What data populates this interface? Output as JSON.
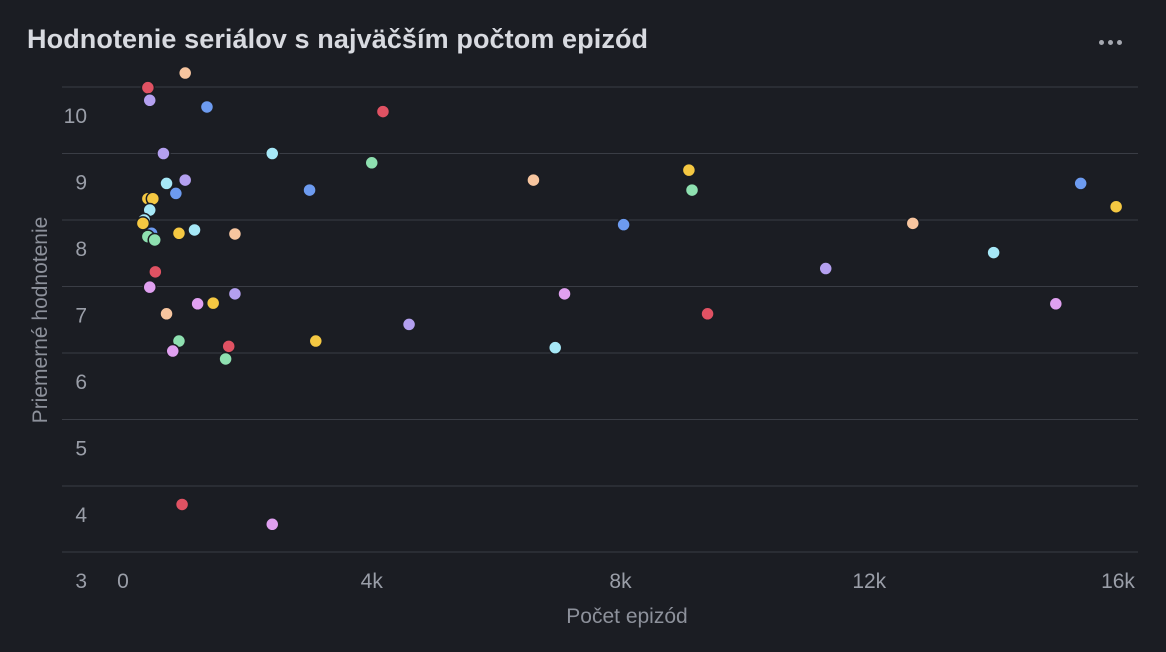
{
  "header": {
    "title": "Hodnotenie seriálov s najväčším počtom epizód",
    "menu_icon": "more-horizontal-icon"
  },
  "palette": [
    "#e05263",
    "#f7c59f",
    "#6d9bf0",
    "#b4a0f0",
    "#a6e8f7",
    "#8ee0b0",
    "#f5c842",
    "#e0a0f0"
  ],
  "chart_data": {
    "type": "scatter",
    "title": "Hodnotenie seriálov s najväčším počtom epizód",
    "xlabel": "Počet epizód",
    "ylabel": "Priemerné hodnotenie",
    "xlim": [
      0,
      16000
    ],
    "ylim": [
      3,
      10
    ],
    "x_ticks": [
      {
        "value": 0,
        "label": "0"
      },
      {
        "value": 4000,
        "label": "4k"
      },
      {
        "value": 8000,
        "label": "8k"
      },
      {
        "value": 12000,
        "label": "12k"
      },
      {
        "value": 16000,
        "label": "16k"
      }
    ],
    "y_ticks": [
      {
        "value": 3,
        "label": "3"
      },
      {
        "value": 4,
        "label": "4"
      },
      {
        "value": 5,
        "label": "5"
      },
      {
        "value": 6,
        "label": "6"
      },
      {
        "value": 7,
        "label": "7"
      },
      {
        "value": 8,
        "label": "8"
      },
      {
        "value": 9,
        "label": "9"
      },
      {
        "value": 10,
        "label": "10"
      }
    ],
    "grid": true,
    "legend": "none",
    "points": [
      {
        "x": 400,
        "y": 9.99,
        "color": "#e05263"
      },
      {
        "x": 1000,
        "y": 10.21,
        "color": "#f7c59f"
      },
      {
        "x": 430,
        "y": 9.8,
        "color": "#b4a0f0"
      },
      {
        "x": 1350,
        "y": 9.7,
        "color": "#6d9bf0"
      },
      {
        "x": 4180,
        "y": 9.63,
        "color": "#e05263"
      },
      {
        "x": 650,
        "y": 9.0,
        "color": "#b4a0f0"
      },
      {
        "x": 2400,
        "y": 9.0,
        "color": "#a6e8f7"
      },
      {
        "x": 4000,
        "y": 8.86,
        "color": "#8ee0b0"
      },
      {
        "x": 1000,
        "y": 8.6,
        "color": "#b4a0f0"
      },
      {
        "x": 700,
        "y": 8.55,
        "color": "#a6e8f7"
      },
      {
        "x": 850,
        "y": 8.4,
        "color": "#6d9bf0"
      },
      {
        "x": 3000,
        "y": 8.45,
        "color": "#6d9bf0"
      },
      {
        "x": 6600,
        "y": 8.6,
        "color": "#f7c59f"
      },
      {
        "x": 9100,
        "y": 8.75,
        "color": "#f5c842"
      },
      {
        "x": 9150,
        "y": 8.45,
        "color": "#8ee0b0"
      },
      {
        "x": 15400,
        "y": 8.55,
        "color": "#6d9bf0"
      },
      {
        "x": 15970,
        "y": 8.2,
        "color": "#f5c842"
      },
      {
        "x": 400,
        "y": 8.32,
        "color": "#f5c842"
      },
      {
        "x": 480,
        "y": 8.32,
        "color": "#f5c842"
      },
      {
        "x": 430,
        "y": 8.15,
        "color": "#a6e8f7"
      },
      {
        "x": 340,
        "y": 8.0,
        "color": "#a6e8f7"
      },
      {
        "x": 320,
        "y": 7.95,
        "color": "#f5c842"
      },
      {
        "x": 460,
        "y": 7.8,
        "color": "#6d9bf0"
      },
      {
        "x": 400,
        "y": 7.75,
        "color": "#8ee0b0"
      },
      {
        "x": 510,
        "y": 7.7,
        "color": "#8ee0b0"
      },
      {
        "x": 900,
        "y": 7.8,
        "color": "#f5c842"
      },
      {
        "x": 1150,
        "y": 7.85,
        "color": "#a6e8f7"
      },
      {
        "x": 1800,
        "y": 7.79,
        "color": "#f7c59f"
      },
      {
        "x": 8050,
        "y": 7.93,
        "color": "#6d9bf0"
      },
      {
        "x": 12700,
        "y": 7.95,
        "color": "#f7c59f"
      },
      {
        "x": 14000,
        "y": 7.51,
        "color": "#a6e8f7"
      },
      {
        "x": 11300,
        "y": 7.27,
        "color": "#b4a0f0"
      },
      {
        "x": 520,
        "y": 7.22,
        "color": "#e05263"
      },
      {
        "x": 430,
        "y": 6.99,
        "color": "#e0a0f0"
      },
      {
        "x": 1800,
        "y": 6.89,
        "color": "#b4a0f0"
      },
      {
        "x": 7100,
        "y": 6.89,
        "color": "#e0a0f0"
      },
      {
        "x": 1200,
        "y": 6.74,
        "color": "#e0a0f0"
      },
      {
        "x": 1450,
        "y": 6.75,
        "color": "#f5c842"
      },
      {
        "x": 700,
        "y": 6.59,
        "color": "#f7c59f"
      },
      {
        "x": 9400,
        "y": 6.59,
        "color": "#e05263"
      },
      {
        "x": 15000,
        "y": 6.74,
        "color": "#e0a0f0"
      },
      {
        "x": 4600,
        "y": 6.43,
        "color": "#b4a0f0"
      },
      {
        "x": 900,
        "y": 6.18,
        "color": "#8ee0b0"
      },
      {
        "x": 3100,
        "y": 6.18,
        "color": "#f5c842"
      },
      {
        "x": 1700,
        "y": 6.1,
        "color": "#e05263"
      },
      {
        "x": 800,
        "y": 6.03,
        "color": "#e0a0f0"
      },
      {
        "x": 6950,
        "y": 6.08,
        "color": "#a6e8f7"
      },
      {
        "x": 1650,
        "y": 5.91,
        "color": "#8ee0b0"
      },
      {
        "x": 950,
        "y": 3.72,
        "color": "#e05263"
      },
      {
        "x": 2400,
        "y": 3.42,
        "color": "#e0a0f0"
      }
    ]
  }
}
